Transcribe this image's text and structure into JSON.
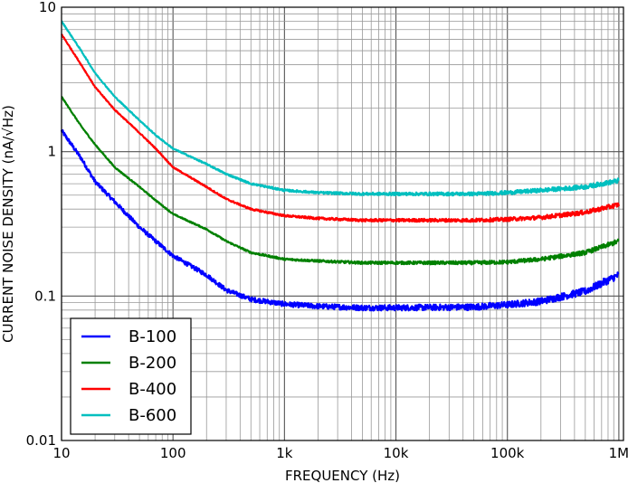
{
  "chart_data": {
    "type": "line",
    "xscale": "log",
    "yscale": "log",
    "xlabel": "FREQUENCY (Hz)",
    "ylabel": "CURRENT NOISE DENSITY (nA/√Hz)",
    "xlim": [
      10,
      1100000
    ],
    "ylim": [
      0.01,
      10
    ],
    "grid": true,
    "legend_position": "bottom-left",
    "x_ticks": [
      {
        "value": 10,
        "label": "10"
      },
      {
        "value": 100,
        "label": "100"
      },
      {
        "value": 1000,
        "label": "1k"
      },
      {
        "value": 10000,
        "label": "10k"
      },
      {
        "value": 100000,
        "label": "100k"
      },
      {
        "value": 1000000,
        "label": "1M"
      }
    ],
    "y_ticks": [
      {
        "value": 0.01,
        "label": "0.01"
      },
      {
        "value": 0.1,
        "label": "0.1"
      },
      {
        "value": 1,
        "label": "1"
      },
      {
        "value": 10,
        "label": "10"
      }
    ],
    "x": [
      10,
      15,
      20,
      30,
      50,
      70,
      100,
      200,
      300,
      500,
      1000,
      2000,
      5000,
      10000,
      50000,
      100000,
      200000,
      500000,
      1000000
    ],
    "series": [
      {
        "name": "B-100",
        "color": "#0000ff",
        "values": [
          1.4,
          0.9,
          0.62,
          0.45,
          0.3,
          0.24,
          0.19,
          0.14,
          0.11,
          0.095,
          0.088,
          0.085,
          0.083,
          0.083,
          0.084,
          0.087,
          0.092,
          0.108,
          0.14
        ]
      },
      {
        "name": "B-200",
        "color": "#008000",
        "values": [
          2.4,
          1.5,
          1.12,
          0.78,
          0.57,
          0.46,
          0.37,
          0.29,
          0.24,
          0.2,
          0.18,
          0.175,
          0.17,
          0.17,
          0.17,
          0.172,
          0.18,
          0.2,
          0.24
        ]
      },
      {
        "name": "B-400",
        "color": "#ff0000",
        "values": [
          6.5,
          4.0,
          2.8,
          1.95,
          1.35,
          1.05,
          0.78,
          0.57,
          0.47,
          0.4,
          0.36,
          0.345,
          0.335,
          0.335,
          0.335,
          0.34,
          0.35,
          0.38,
          0.43
        ]
      },
      {
        "name": "B-600",
        "color": "#00bfbf",
        "values": [
          8.0,
          5.0,
          3.5,
          2.4,
          1.65,
          1.3,
          1.05,
          0.82,
          0.7,
          0.6,
          0.54,
          0.52,
          0.51,
          0.51,
          0.51,
          0.52,
          0.54,
          0.57,
          0.63
        ]
      }
    ]
  }
}
